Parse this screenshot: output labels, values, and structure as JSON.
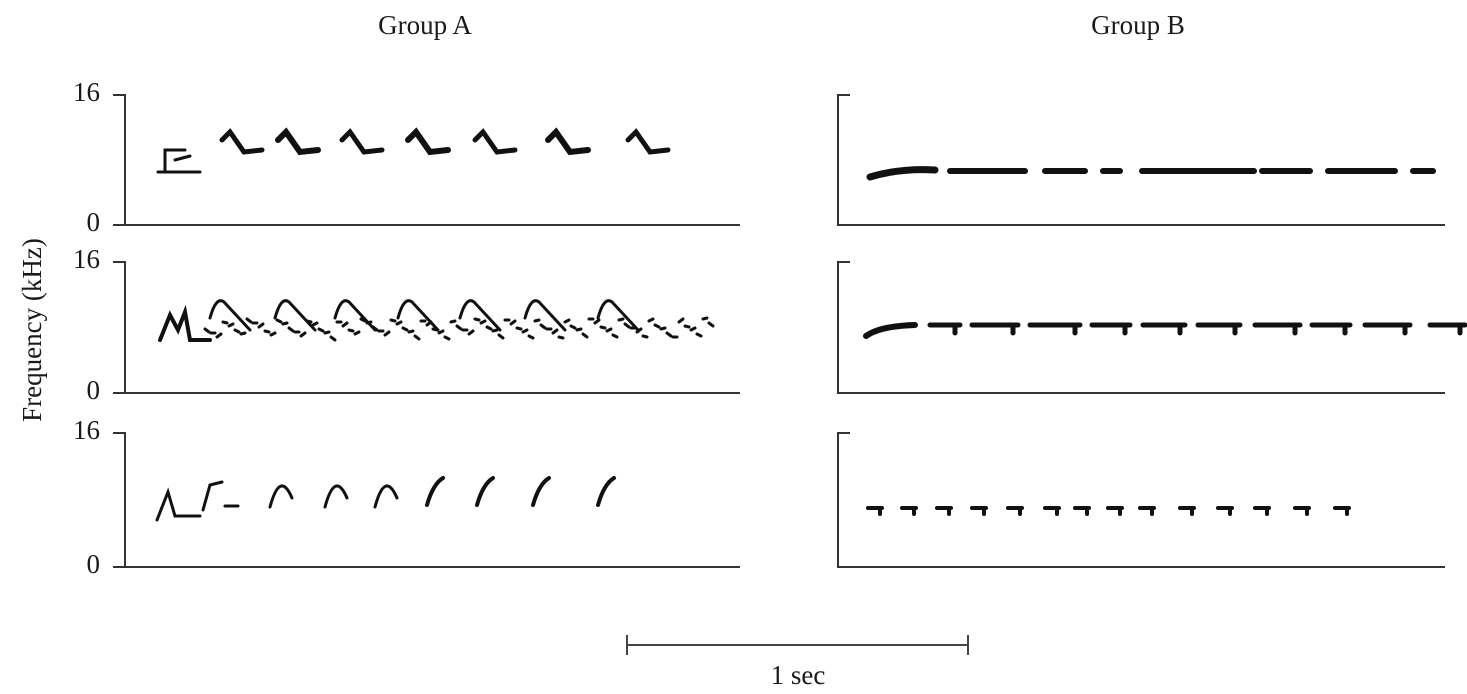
{
  "groups": [
    {
      "title": "Group A"
    },
    {
      "title": "Group B"
    }
  ],
  "y_axis_label": "Frequency (kHz)",
  "rows": [
    {
      "yticks": [
        "16",
        "0"
      ]
    },
    {
      "yticks": [
        "16",
        "0"
      ]
    },
    {
      "yticks": [
        "16",
        "0"
      ]
    }
  ],
  "scale_bar": "1 sec"
}
